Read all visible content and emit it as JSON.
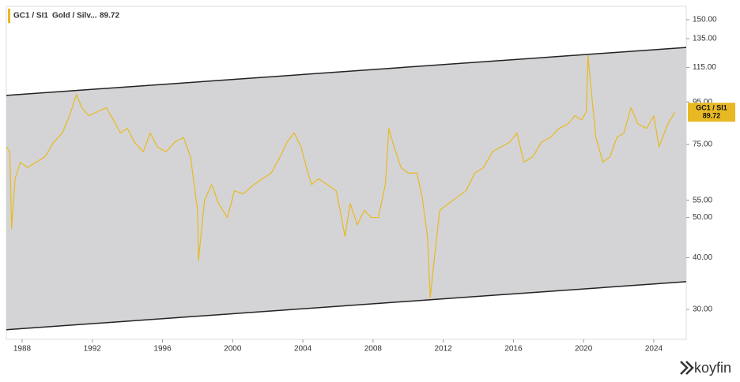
{
  "chart_data": {
    "type": "line",
    "header": {
      "ticker": "GC1 / SI1",
      "name": "Gold / Silv...",
      "last": "89.72"
    },
    "brand": "koyfin",
    "log_scale": true,
    "xlim": [
      1987.1,
      2025.85
    ],
    "xticks": [
      1988,
      1992,
      1996,
      2000,
      2004,
      2008,
      2012,
      2016,
      2020,
      2024
    ],
    "ylim": [
      25.4,
      161.6
    ],
    "yticks": [
      {
        "value": 150,
        "label": "150.00"
      },
      {
        "value": 135,
        "label": "135.00"
      },
      {
        "value": 115,
        "label": "115.00"
      },
      {
        "value": 95,
        "label": "95.00"
      },
      {
        "value": 75,
        "label": "75.00"
      },
      {
        "value": 55,
        "label": "55.00"
      },
      {
        "value": 50,
        "label": "50.00"
      },
      {
        "value": 40,
        "label": "40.00"
      },
      {
        "value": 30,
        "label": "30.00"
      }
    ],
    "channel": {
      "x": [
        1987.1,
        2025.85
      ],
      "upper": [
        98.5,
        128.6
      ],
      "lower": [
        26.8,
        35.0
      ],
      "color": "#d4d4d6"
    },
    "x": [
      1987.1,
      1987.3,
      1987.4,
      1987.6,
      1987.9,
      1988.3,
      1988.8,
      1989.3,
      1989.8,
      1990.3,
      1990.7,
      1991.1,
      1991.4,
      1991.8,
      1992.3,
      1992.8,
      1993.2,
      1993.6,
      1994.0,
      1994.4,
      1994.9,
      1995.3,
      1995.7,
      1996.2,
      1996.7,
      1997.2,
      1997.6,
      1998.0,
      1998.05,
      1998.4,
      1998.8,
      1999.2,
      1999.7,
      2000.1,
      2000.6,
      2001.2,
      2001.7,
      2002.2,
      2002.7,
      2003.1,
      2003.5,
      2003.9,
      2004.2,
      2004.5,
      2004.9,
      2005.4,
      2005.9,
      2006.2,
      2006.4,
      2006.7,
      2007.1,
      2007.5,
      2007.9,
      2008.3,
      2008.7,
      2008.9,
      2009.2,
      2009.6,
      2010.0,
      2010.5,
      2010.8,
      2011.1,
      2011.26,
      2011.5,
      2011.8,
      2012.3,
      2012.8,
      2013.3,
      2013.8,
      2014.3,
      2014.8,
      2015.3,
      2015.8,
      2016.2,
      2016.6,
      2017.1,
      2017.6,
      2018.1,
      2018.6,
      2019.1,
      2019.5,
      2019.9,
      2020.15,
      2020.25,
      2020.4,
      2020.7,
      2021.1,
      2021.5,
      2021.9,
      2022.3,
      2022.7,
      2023.1,
      2023.6,
      2024.0,
      2024.3,
      2024.8,
      2025.2
    ],
    "series": [
      {
        "name": "GC1 / SI1",
        "color": "#e8b923",
        "values": [
          74,
          72,
          47,
          62,
          68,
          66,
          68,
          70,
          76,
          80,
          88,
          99,
          92,
          88,
          90,
          92,
          86,
          80,
          82,
          76,
          72,
          80,
          74,
          72,
          76,
          78,
          70,
          52,
          39.4,
          55,
          60,
          54,
          50,
          58,
          57,
          60,
          62,
          64,
          70,
          76,
          80,
          74,
          66,
          60,
          62,
          60,
          58,
          50,
          45,
          54,
          48,
          52,
          50,
          50,
          60,
          82,
          74,
          66,
          64,
          64,
          56,
          45,
          32,
          40,
          52,
          54,
          56,
          58,
          64,
          66,
          72,
          74,
          76,
          80,
          68,
          70,
          76,
          78,
          82,
          84,
          88,
          86,
          90,
          123,
          105,
          78,
          68,
          70,
          78,
          80,
          92,
          84,
          82,
          88,
          74,
          84,
          89.72
        ]
      }
    ]
  }
}
